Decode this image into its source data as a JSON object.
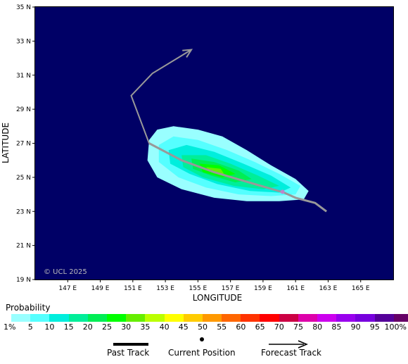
{
  "map": {
    "lon_range": [
      145,
      167
    ],
    "lat_range": [
      19,
      35
    ],
    "lat_ticks": [
      "19 N",
      "21 N",
      "23 N",
      "25 N",
      "27 N",
      "29 N",
      "31 N",
      "33 N",
      "35 N"
    ],
    "lon_ticks": [
      "147 E",
      "149 E",
      "151 E",
      "153 E",
      "155 E",
      "157 E",
      "159 E",
      "161 E",
      "163 E",
      "165 E"
    ],
    "xlabel": "LONGITUDE",
    "ylabel": "LATITUDE",
    "copyright": "© UCL 2025",
    "ocean_color": "#000066"
  },
  "past_track": [
    [
      162.9,
      23.0
    ],
    [
      162.2,
      23.5
    ],
    [
      161.0,
      23.8
    ],
    [
      160.3,
      24.1
    ],
    [
      158.5,
      24.6
    ],
    [
      156.0,
      25.3
    ],
    [
      154.0,
      26.0
    ],
    [
      152.0,
      27.0
    ]
  ],
  "current_position": [
    160.2,
    24.15
  ],
  "forecast_track": [
    [
      152.0,
      27.0
    ],
    [
      150.9,
      29.8
    ],
    [
      152.2,
      31.1
    ],
    [
      154.6,
      32.5
    ]
  ],
  "probability_field": {
    "1": [
      [
        152.0,
        27.2
      ],
      [
        152.5,
        27.8
      ],
      [
        153.5,
        28.0
      ],
      [
        155.0,
        27.8
      ],
      [
        156.5,
        27.4
      ],
      [
        158.0,
        26.6
      ],
      [
        159.5,
        25.7
      ],
      [
        161.0,
        24.9
      ],
      [
        161.8,
        24.2
      ],
      [
        161.5,
        23.7
      ],
      [
        160.0,
        23.6
      ],
      [
        158.0,
        23.6
      ],
      [
        156.0,
        23.8
      ],
      [
        154.0,
        24.3
      ],
      [
        152.5,
        25.0
      ],
      [
        151.9,
        26.0
      ]
    ],
    "5": [
      [
        152.6,
        26.9
      ],
      [
        153.5,
        27.4
      ],
      [
        155.0,
        27.2
      ],
      [
        156.8,
        26.6
      ],
      [
        158.5,
        25.9
      ],
      [
        160.0,
        25.2
      ],
      [
        161.3,
        24.5
      ],
      [
        161.0,
        24.0
      ],
      [
        159.5,
        23.9
      ],
      [
        157.5,
        24.0
      ],
      [
        155.5,
        24.4
      ],
      [
        153.8,
        25.0
      ],
      [
        152.6,
        25.9
      ]
    ],
    "10": [
      [
        153.2,
        26.6
      ],
      [
        154.3,
        26.9
      ],
      [
        156.0,
        26.5
      ],
      [
        157.8,
        25.8
      ],
      [
        159.5,
        25.1
      ],
      [
        160.7,
        24.4
      ],
      [
        160.0,
        24.1
      ],
      [
        158.2,
        24.2
      ],
      [
        156.2,
        24.6
      ],
      [
        154.5,
        25.2
      ],
      [
        153.3,
        25.8
      ]
    ],
    "15": [
      [
        154.0,
        26.3
      ],
      [
        155.5,
        26.3
      ],
      [
        157.0,
        25.8
      ],
      [
        158.7,
        25.1
      ],
      [
        160.0,
        24.5
      ],
      [
        159.0,
        24.3
      ],
      [
        157.2,
        24.5
      ],
      [
        155.3,
        25.0
      ],
      [
        154.1,
        25.6
      ]
    ],
    "20": [
      [
        154.6,
        26.1
      ],
      [
        156.0,
        25.9
      ],
      [
        157.5,
        25.4
      ],
      [
        158.3,
        24.9
      ],
      [
        157.3,
        24.7
      ],
      [
        155.8,
        25.1
      ],
      [
        154.7,
        25.5
      ]
    ],
    "25": [
      [
        155.1,
        25.8
      ],
      [
        156.3,
        25.7
      ],
      [
        157.3,
        25.2
      ],
      [
        156.5,
        25.0
      ],
      [
        155.3,
        25.3
      ]
    ],
    "30": [
      [
        155.5,
        25.6
      ],
      [
        156.4,
        25.5
      ],
      [
        156.6,
        25.2
      ],
      [
        155.8,
        25.3
      ]
    ]
  },
  "probability_legend": {
    "title": "Probability",
    "colors": [
      "#99ffff",
      "#55ffff",
      "#00eedd",
      "#00ee99",
      "#00ee55",
      "#00ff00",
      "#66ee00",
      "#bbff00",
      "#ffff00",
      "#ffcc00",
      "#ff9900",
      "#ff6600",
      "#ff3300",
      "#ff0000",
      "#cc0044",
      "#dd00aa",
      "#cc00ee",
      "#9900ee",
      "#7700dd",
      "#550099",
      "#660066"
    ],
    "labels": [
      "1%",
      "5",
      "10",
      "15",
      "20",
      "25",
      "30",
      "35",
      "40",
      "45",
      "50",
      "55",
      "60",
      "65",
      "70",
      "75",
      "80",
      "85",
      "90",
      "95",
      "100%"
    ]
  },
  "track_legend": {
    "past": "Past Track",
    "current": "Current Position",
    "forecast": "Forecast Track"
  }
}
